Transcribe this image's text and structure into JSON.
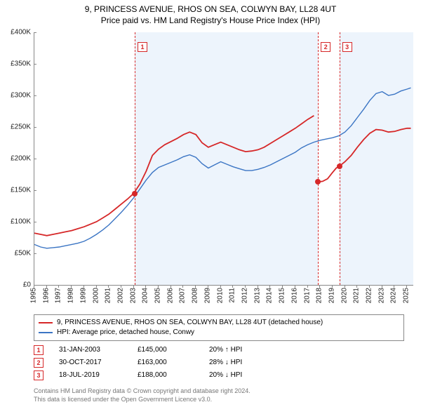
{
  "title_line1": "9, PRINCESS AVENUE, RHOS ON SEA, COLWYN BAY, LL28 4UT",
  "title_line2": "Price paid vs. HM Land Registry's House Price Index (HPI)",
  "chart": {
    "type": "line",
    "background_color": "#ffffff",
    "shade_color": "#eaf2fb",
    "grid_color": "#888888",
    "ylim": [
      0,
      400000
    ],
    "ytick_step": 50000,
    "yticks": [
      "£0",
      "£50K",
      "£100K",
      "£150K",
      "£200K",
      "£250K",
      "£300K",
      "£350K",
      "£400K"
    ],
    "xlim": [
      1995,
      2025.5
    ],
    "xticks": [
      1995,
      1996,
      1997,
      1998,
      1999,
      2000,
      2001,
      2002,
      2003,
      2004,
      2005,
      2006,
      2007,
      2008,
      2009,
      2010,
      2011,
      2012,
      2013,
      2014,
      2015,
      2016,
      2017,
      2018,
      2019,
      2020,
      2021,
      2022,
      2023,
      2024,
      2025
    ],
    "shade_ranges": [
      [
        2003.08,
        2017.83
      ],
      [
        2019.55,
        2025.5
      ]
    ],
    "series": {
      "property": {
        "color": "#d62728",
        "width": 1.8,
        "data": [
          [
            1995.0,
            82000
          ],
          [
            1995.5,
            80000
          ],
          [
            1996.0,
            78000
          ],
          [
            1996.5,
            80000
          ],
          [
            1997.0,
            82000
          ],
          [
            1997.5,
            84000
          ],
          [
            1998.0,
            86000
          ],
          [
            1998.5,
            89000
          ],
          [
            1999.0,
            92000
          ],
          [
            1999.5,
            96000
          ],
          [
            2000.0,
            100000
          ],
          [
            2000.5,
            106000
          ],
          [
            2001.0,
            112000
          ],
          [
            2001.5,
            120000
          ],
          [
            2002.0,
            128000
          ],
          [
            2002.5,
            136000
          ],
          [
            2003.0,
            145000
          ],
          [
            2003.5,
            160000
          ],
          [
            2004.0,
            180000
          ],
          [
            2004.5,
            205000
          ],
          [
            2005.0,
            215000
          ],
          [
            2005.5,
            222000
          ],
          [
            2006.0,
            227000
          ],
          [
            2006.5,
            232000
          ],
          [
            2007.0,
            238000
          ],
          [
            2007.5,
            242000
          ],
          [
            2008.0,
            238000
          ],
          [
            2008.5,
            225000
          ],
          [
            2009.0,
            218000
          ],
          [
            2009.5,
            222000
          ],
          [
            2010.0,
            226000
          ],
          [
            2010.5,
            222000
          ],
          [
            2011.0,
            218000
          ],
          [
            2011.5,
            214000
          ],
          [
            2012.0,
            211000
          ],
          [
            2012.5,
            212000
          ],
          [
            2013.0,
            214000
          ],
          [
            2013.5,
            218000
          ],
          [
            2014.0,
            224000
          ],
          [
            2014.5,
            230000
          ],
          [
            2015.0,
            236000
          ],
          [
            2015.5,
            242000
          ],
          [
            2016.0,
            248000
          ],
          [
            2016.5,
            255000
          ],
          [
            2017.0,
            262000
          ],
          [
            2017.5,
            268000
          ],
          [
            2017.83,
            163000
          ],
          [
            2018.2,
            164000
          ],
          [
            2018.6,
            168000
          ],
          [
            2019.0,
            178000
          ],
          [
            2019.3,
            185000
          ],
          [
            2019.55,
            188000
          ],
          [
            2020.0,
            195000
          ],
          [
            2020.5,
            205000
          ],
          [
            2021.0,
            218000
          ],
          [
            2021.5,
            230000
          ],
          [
            2022.0,
            240000
          ],
          [
            2022.5,
            246000
          ],
          [
            2023.0,
            245000
          ],
          [
            2023.5,
            242000
          ],
          [
            2024.0,
            243000
          ],
          [
            2024.5,
            246000
          ],
          [
            2025.0,
            248000
          ],
          [
            2025.3,
            248000
          ]
        ]
      },
      "hpi": {
        "color": "#3b75c4",
        "width": 1.4,
        "data": [
          [
            1995.0,
            64000
          ],
          [
            1995.5,
            60000
          ],
          [
            1996.0,
            58000
          ],
          [
            1996.5,
            59000
          ],
          [
            1997.0,
            60000
          ],
          [
            1997.5,
            62000
          ],
          [
            1998.0,
            64000
          ],
          [
            1998.5,
            66000
          ],
          [
            1999.0,
            69000
          ],
          [
            1999.5,
            74000
          ],
          [
            2000.0,
            80000
          ],
          [
            2000.5,
            87000
          ],
          [
            2001.0,
            95000
          ],
          [
            2001.5,
            105000
          ],
          [
            2002.0,
            115000
          ],
          [
            2002.5,
            126000
          ],
          [
            2003.0,
            138000
          ],
          [
            2003.5,
            152000
          ],
          [
            2004.0,
            166000
          ],
          [
            2004.5,
            178000
          ],
          [
            2005.0,
            186000
          ],
          [
            2005.5,
            190000
          ],
          [
            2006.0,
            194000
          ],
          [
            2006.5,
            198000
          ],
          [
            2007.0,
            203000
          ],
          [
            2007.5,
            206000
          ],
          [
            2008.0,
            202000
          ],
          [
            2008.5,
            192000
          ],
          [
            2009.0,
            185000
          ],
          [
            2009.5,
            190000
          ],
          [
            2010.0,
            195000
          ],
          [
            2010.5,
            191000
          ],
          [
            2011.0,
            187000
          ],
          [
            2011.5,
            184000
          ],
          [
            2012.0,
            181000
          ],
          [
            2012.5,
            181000
          ],
          [
            2013.0,
            183000
          ],
          [
            2013.5,
            186000
          ],
          [
            2014.0,
            190000
          ],
          [
            2014.5,
            195000
          ],
          [
            2015.0,
            200000
          ],
          [
            2015.5,
            205000
          ],
          [
            2016.0,
            210000
          ],
          [
            2016.5,
            217000
          ],
          [
            2017.0,
            222000
          ],
          [
            2017.5,
            226000
          ],
          [
            2018.0,
            229000
          ],
          [
            2018.5,
            231000
          ],
          [
            2019.0,
            233000
          ],
          [
            2019.5,
            236000
          ],
          [
            2020.0,
            242000
          ],
          [
            2020.5,
            252000
          ],
          [
            2021.0,
            265000
          ],
          [
            2021.5,
            278000
          ],
          [
            2022.0,
            292000
          ],
          [
            2022.5,
            303000
          ],
          [
            2023.0,
            306000
          ],
          [
            2023.5,
            300000
          ],
          [
            2024.0,
            302000
          ],
          [
            2024.5,
            307000
          ],
          [
            2025.0,
            310000
          ],
          [
            2025.3,
            312000
          ]
        ]
      }
    },
    "sale_markers": [
      {
        "n": "1",
        "x": 2003.08,
        "y": 145000
      },
      {
        "n": "2",
        "x": 2017.83,
        "y": 163000
      },
      {
        "n": "3",
        "x": 2019.55,
        "y": 188000
      }
    ]
  },
  "legend": {
    "property": "9, PRINCESS AVENUE, RHOS ON SEA, COLWYN BAY, LL28 4UT (detached house)",
    "hpi": "HPI: Average price, detached house, Conwy"
  },
  "sales": [
    {
      "n": "1",
      "date": "31-JAN-2003",
      "price": "£145,000",
      "delta": "20% ↑ HPI"
    },
    {
      "n": "2",
      "date": "30-OCT-2017",
      "price": "£163,000",
      "delta": "28% ↓ HPI"
    },
    {
      "n": "3",
      "date": "18-JUL-2019",
      "price": "£188,000",
      "delta": "20% ↓ HPI"
    }
  ],
  "footer_line1": "Contains HM Land Registry data © Crown copyright and database right 2024.",
  "footer_line2": "This data is licensed under the Open Government Licence v3.0."
}
